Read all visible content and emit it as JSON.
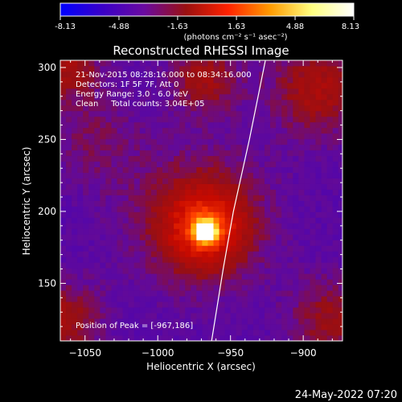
{
  "colorbar": {
    "tick_labels": [
      "-8.13",
      "-4.88",
      "-1.63",
      "1.63",
      "4.88",
      "8.13"
    ],
    "tick_values": [
      -8.13,
      -4.88,
      -1.63,
      1.63,
      4.88,
      8.13
    ],
    "range": [
      -8.13,
      8.13
    ],
    "unit_label": "(photons cm⁻² s⁻¹ asec⁻²)",
    "colors": [
      "#0000ff",
      "#3a00c8",
      "#6a0aa0",
      "#9a1010",
      "#ff2200",
      "#ff9a00",
      "#ffff80",
      "#ffffff"
    ]
  },
  "footer": {
    "date_stamp": "24-May-2022 07:20"
  },
  "chart_data": {
    "type": "heatmap",
    "title": "Reconstructed RHESSI Image",
    "xlabel": "Heliocentric X (arcsec)",
    "ylabel": "Heliocentric Y (arcsec)",
    "xlim": [
      -1067,
      -873
    ],
    "ylim": [
      110,
      305
    ],
    "x_ticks": [
      -1050,
      -1000,
      -950,
      -900
    ],
    "y_ticks": [
      150,
      200,
      250,
      300
    ],
    "x_tick_labels": [
      "−1050",
      "−1000",
      "−950",
      "−900"
    ],
    "y_tick_labels": [
      "150",
      "200",
      "250",
      "300"
    ],
    "info_lines": [
      "21-Nov-2015 08:28:16.000 to 08:34:16.000",
      "Detectors: 1F 5F 7F, Att 0",
      "Energy Range: 3.0 - 6.0 keV",
      "Clean     Total counts: 3.04E+05"
    ],
    "peak_label": "Position of Peak = [-967,186]",
    "peak": [
      -967,
      186
    ],
    "total_counts": 304000,
    "limb_curve": [
      [
        -963,
        110
      ],
      [
        -955,
        160
      ],
      [
        -948,
        200
      ],
      [
        -937,
        250
      ],
      [
        -926,
        305
      ]
    ],
    "sources": [
      {
        "x": -967,
        "y": 186,
        "amp": 9.0,
        "sigma": 5
      },
      {
        "x": -967,
        "y": 188,
        "amp": 4.0,
        "sigma": 19
      },
      {
        "x": -972,
        "y": 197,
        "amp": 2.2,
        "sigma": 34
      },
      {
        "x": -968,
        "y": 293,
        "amp": 2.4,
        "sigma": 17
      },
      {
        "x": -890,
        "y": 285,
        "amp": 2.8,
        "sigma": 22
      },
      {
        "x": -1062,
        "y": 300,
        "amp": 2.5,
        "sigma": 16
      },
      {
        "x": -1065,
        "y": 125,
        "amp": 2.5,
        "sigma": 18
      },
      {
        "x": -880,
        "y": 125,
        "amp": 2.2,
        "sigma": 20
      },
      {
        "x": -1045,
        "y": 250,
        "amp": 1.2,
        "sigma": 22
      }
    ],
    "background_level": -1.8
  }
}
